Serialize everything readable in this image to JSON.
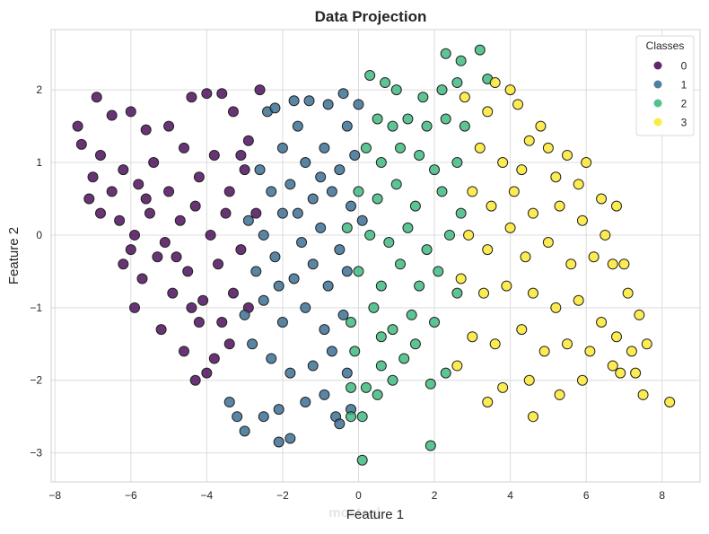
{
  "chart_data": {
    "type": "scatter",
    "title": "Data Projection",
    "xlabel": "Feature 1",
    "ylabel": "Feature 2",
    "xlim": [
      -8.1,
      9.0
    ],
    "ylim": [
      -3.4,
      2.83
    ],
    "xticks": [
      -8,
      -6,
      -4,
      -2,
      0,
      2,
      4,
      6,
      8
    ],
    "yticks": [
      -3,
      -2,
      -1,
      0,
      1,
      2
    ],
    "grid": true,
    "legend": {
      "title": "Classes",
      "placement": "top-right"
    },
    "series": [
      {
        "name": "0",
        "color": "#440154",
        "points": [
          [
            -6.9,
            1.9
          ],
          [
            -7.4,
            1.5
          ],
          [
            -7.3,
            1.25
          ],
          [
            -6.5,
            1.65
          ],
          [
            -6.0,
            1.7
          ],
          [
            -5.6,
            1.45
          ],
          [
            -5.0,
            1.5
          ],
          [
            -4.4,
            1.9
          ],
          [
            -4.0,
            1.95
          ],
          [
            -3.6,
            1.95
          ],
          [
            -3.3,
            1.7
          ],
          [
            -2.6,
            2.0
          ],
          [
            -2.9,
            1.3
          ],
          [
            -3.1,
            1.1
          ],
          [
            -6.8,
            1.1
          ],
          [
            -7.0,
            0.8
          ],
          [
            -6.5,
            0.6
          ],
          [
            -6.2,
            0.9
          ],
          [
            -5.8,
            0.7
          ],
          [
            -5.4,
            1.0
          ],
          [
            -5.0,
            0.6
          ],
          [
            -4.6,
            1.2
          ],
          [
            -4.2,
            0.8
          ],
          [
            -3.8,
            1.1
          ],
          [
            -3.4,
            0.6
          ],
          [
            -3.0,
            0.9
          ],
          [
            -6.8,
            0.3
          ],
          [
            -6.3,
            0.2
          ],
          [
            -5.9,
            0.0
          ],
          [
            -5.5,
            0.3
          ],
          [
            -5.1,
            -0.1
          ],
          [
            -4.7,
            0.2
          ],
          [
            -4.3,
            0.4
          ],
          [
            -3.9,
            0.0
          ],
          [
            -3.5,
            0.3
          ],
          [
            -3.1,
            -0.2
          ],
          [
            -6.2,
            -0.4
          ],
          [
            -5.7,
            -0.6
          ],
          [
            -5.3,
            -0.3
          ],
          [
            -4.9,
            -0.8
          ],
          [
            -4.5,
            -0.5
          ],
          [
            -4.1,
            -0.9
          ],
          [
            -3.7,
            -0.4
          ],
          [
            -3.3,
            -0.8
          ],
          [
            -5.9,
            -1.0
          ],
          [
            -5.2,
            -1.3
          ],
          [
            -4.6,
            -1.6
          ],
          [
            -4.2,
            -1.2
          ],
          [
            -3.8,
            -1.7
          ],
          [
            -3.4,
            -1.5
          ],
          [
            -4.3,
            -2.0
          ],
          [
            -4.0,
            -1.9
          ],
          [
            -2.9,
            -1.0
          ],
          [
            -2.7,
            0.3
          ],
          [
            -6.0,
            -0.2
          ],
          [
            -5.6,
            0.5
          ],
          [
            -4.8,
            -0.3
          ],
          [
            -4.4,
            -1.0
          ],
          [
            -3.6,
            -1.2
          ],
          [
            -7.1,
            0.5
          ]
        ]
      },
      {
        "name": "1",
        "color": "#31688e",
        "points": [
          [
            -2.4,
            1.7
          ],
          [
            -2.2,
            1.75
          ],
          [
            -1.7,
            1.85
          ],
          [
            -1.3,
            1.85
          ],
          [
            -0.8,
            1.8
          ],
          [
            -0.4,
            1.95
          ],
          [
            0.0,
            1.8
          ],
          [
            -0.3,
            1.5
          ],
          [
            -1.6,
            1.5
          ],
          [
            -2.0,
            1.2
          ],
          [
            -1.4,
            1.0
          ],
          [
            -0.9,
            1.2
          ],
          [
            -0.5,
            0.9
          ],
          [
            -0.1,
            1.1
          ],
          [
            -2.6,
            0.9
          ],
          [
            -2.3,
            0.6
          ],
          [
            -1.8,
            0.7
          ],
          [
            -1.2,
            0.5
          ],
          [
            -0.7,
            0.6
          ],
          [
            -0.2,
            0.4
          ],
          [
            -2.9,
            0.2
          ],
          [
            -2.5,
            0.0
          ],
          [
            -2.0,
            0.3
          ],
          [
            -1.5,
            -0.1
          ],
          [
            -1.0,
            0.1
          ],
          [
            -0.5,
            -0.2
          ],
          [
            0.1,
            0.2
          ],
          [
            -2.7,
            -0.5
          ],
          [
            -2.2,
            -0.3
          ],
          [
            -1.7,
            -0.6
          ],
          [
            -1.2,
            -0.4
          ],
          [
            -0.8,
            -0.7
          ],
          [
            -0.3,
            -0.5
          ],
          [
            -3.0,
            -1.1
          ],
          [
            -2.5,
            -0.9
          ],
          [
            -2.0,
            -1.2
          ],
          [
            -1.4,
            -1.0
          ],
          [
            -0.9,
            -1.3
          ],
          [
            -0.4,
            -1.1
          ],
          [
            -2.8,
            -1.5
          ],
          [
            -2.3,
            -1.7
          ],
          [
            -1.8,
            -1.9
          ],
          [
            -1.2,
            -1.8
          ],
          [
            -0.7,
            -1.6
          ],
          [
            -0.3,
            -1.9
          ],
          [
            -3.4,
            -2.3
          ],
          [
            -3.2,
            -2.5
          ],
          [
            -2.5,
            -2.5
          ],
          [
            -2.1,
            -2.4
          ],
          [
            -1.4,
            -2.3
          ],
          [
            -0.9,
            -2.2
          ],
          [
            -0.6,
            -2.5
          ],
          [
            -0.5,
            -2.6
          ],
          [
            -2.1,
            -2.85
          ],
          [
            -1.8,
            -2.8
          ],
          [
            -3.0,
            -2.7
          ],
          [
            -0.2,
            -2.4
          ],
          [
            -1.0,
            0.8
          ],
          [
            -1.6,
            0.3
          ],
          [
            -2.1,
            -0.7
          ]
        ]
      },
      {
        "name": "2",
        "color": "#35b779",
        "points": [
          [
            0.3,
            2.2
          ],
          [
            0.7,
            2.1
          ],
          [
            1.0,
            2.0
          ],
          [
            1.7,
            1.9
          ],
          [
            2.2,
            2.0
          ],
          [
            2.3,
            2.5
          ],
          [
            2.7,
            2.4
          ],
          [
            3.2,
            2.55
          ],
          [
            3.4,
            2.15
          ],
          [
            2.6,
            2.1
          ],
          [
            0.5,
            1.6
          ],
          [
            0.9,
            1.5
          ],
          [
            1.3,
            1.6
          ],
          [
            1.8,
            1.5
          ],
          [
            2.3,
            1.6
          ],
          [
            2.8,
            1.5
          ],
          [
            0.2,
            1.2
          ],
          [
            0.6,
            1.0
          ],
          [
            1.1,
            1.2
          ],
          [
            1.6,
            1.1
          ],
          [
            2.0,
            0.9
          ],
          [
            2.6,
            1.0
          ],
          [
            0.0,
            0.6
          ],
          [
            0.5,
            0.5
          ],
          [
            1.0,
            0.7
          ],
          [
            1.5,
            0.4
          ],
          [
            2.2,
            0.6
          ],
          [
            2.7,
            0.3
          ],
          [
            -0.3,
            0.1
          ],
          [
            0.3,
            0.0
          ],
          [
            0.8,
            -0.1
          ],
          [
            1.3,
            0.1
          ],
          [
            1.8,
            -0.2
          ],
          [
            2.4,
            0.0
          ],
          [
            0.0,
            -0.5
          ],
          [
            0.6,
            -0.7
          ],
          [
            1.1,
            -0.4
          ],
          [
            1.6,
            -0.7
          ],
          [
            2.1,
            -0.5
          ],
          [
            2.6,
            -0.8
          ],
          [
            -0.2,
            -1.2
          ],
          [
            0.4,
            -1.0
          ],
          [
            0.9,
            -1.3
          ],
          [
            1.4,
            -1.1
          ],
          [
            2.0,
            -1.2
          ],
          [
            -0.1,
            -1.6
          ],
          [
            0.6,
            -1.8
          ],
          [
            1.2,
            -1.7
          ],
          [
            1.5,
            -1.5
          ],
          [
            2.3,
            -1.9
          ],
          [
            -0.2,
            -2.1
          ],
          [
            0.2,
            -2.1
          ],
          [
            0.5,
            -2.2
          ],
          [
            0.1,
            -2.5
          ],
          [
            -0.2,
            -2.5
          ],
          [
            1.9,
            -2.9
          ],
          [
            0.1,
            -3.1
          ],
          [
            1.9,
            -2.05
          ],
          [
            0.9,
            -2.0
          ],
          [
            0.6,
            -1.4
          ]
        ]
      },
      {
        "name": "3",
        "color": "#fde725",
        "points": [
          [
            2.8,
            1.9
          ],
          [
            3.6,
            2.1
          ],
          [
            4.0,
            2.0
          ],
          [
            4.2,
            1.8
          ],
          [
            3.4,
            1.7
          ],
          [
            4.8,
            1.5
          ],
          [
            4.5,
            1.3
          ],
          [
            5.0,
            1.2
          ],
          [
            5.5,
            1.1
          ],
          [
            6.0,
            1.0
          ],
          [
            3.2,
            1.2
          ],
          [
            3.8,
            1.0
          ],
          [
            4.3,
            0.9
          ],
          [
            5.2,
            0.8
          ],
          [
            5.8,
            0.7
          ],
          [
            6.4,
            0.5
          ],
          [
            6.8,
            0.4
          ],
          [
            3.0,
            0.6
          ],
          [
            3.5,
            0.4
          ],
          [
            4.1,
            0.6
          ],
          [
            4.6,
            0.3
          ],
          [
            5.3,
            0.4
          ],
          [
            5.9,
            0.2
          ],
          [
            6.5,
            0.0
          ],
          [
            2.9,
            0.0
          ],
          [
            3.4,
            -0.2
          ],
          [
            4.0,
            0.1
          ],
          [
            4.4,
            -0.3
          ],
          [
            5.0,
            -0.1
          ],
          [
            5.6,
            -0.4
          ],
          [
            6.2,
            -0.3
          ],
          [
            6.7,
            -0.4
          ],
          [
            7.0,
            -0.4
          ],
          [
            2.7,
            -0.6
          ],
          [
            3.3,
            -0.8
          ],
          [
            3.9,
            -0.7
          ],
          [
            4.6,
            -0.8
          ],
          [
            5.2,
            -1.0
          ],
          [
            5.8,
            -0.9
          ],
          [
            6.4,
            -1.2
          ],
          [
            7.1,
            -0.8
          ],
          [
            7.4,
            -1.1
          ],
          [
            3.0,
            -1.4
          ],
          [
            3.6,
            -1.5
          ],
          [
            4.3,
            -1.3
          ],
          [
            4.9,
            -1.6
          ],
          [
            5.5,
            -1.5
          ],
          [
            6.1,
            -1.6
          ],
          [
            6.8,
            -1.4
          ],
          [
            7.2,
            -1.6
          ],
          [
            7.6,
            -1.5
          ],
          [
            2.6,
            -1.8
          ],
          [
            3.8,
            -2.1
          ],
          [
            4.5,
            -2.0
          ],
          [
            5.3,
            -2.2
          ],
          [
            5.9,
            -2.0
          ],
          [
            6.9,
            -1.9
          ],
          [
            7.3,
            -1.9
          ],
          [
            7.5,
            -2.2
          ],
          [
            8.2,
            -2.3
          ],
          [
            3.4,
            -2.3
          ],
          [
            4.6,
            -2.5
          ],
          [
            6.7,
            -1.8
          ]
        ]
      }
    ]
  },
  "watermark": "mostaql"
}
